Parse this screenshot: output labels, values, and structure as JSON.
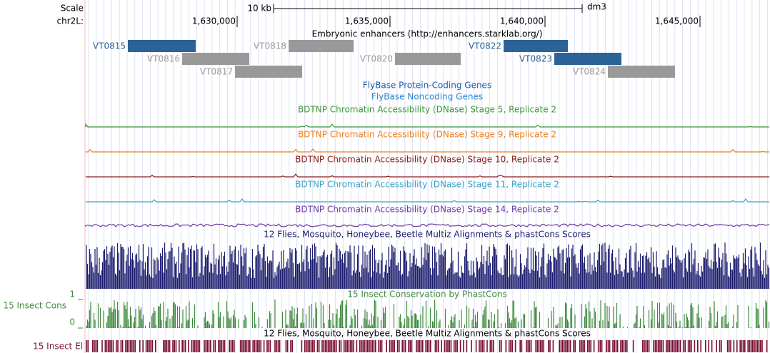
{
  "ruler": {
    "scale_label": "Scale",
    "chrom_label": "chr2L:",
    "bar_label": "10 kb",
    "assembly": "dm3",
    "positions": [
      "1,630,000",
      "1,635,000",
      "1,640,000",
      "1,645,000"
    ]
  },
  "enhancers": {
    "title": "Embryonic enhancers (http://enhancers.starklab.org/)",
    "features": [
      {
        "label": "VT0815",
        "color": "#2b6297"
      },
      {
        "label": "VT0816",
        "color": "#999999"
      },
      {
        "label": "VT0817",
        "color": "#999999"
      },
      {
        "label": "VT0818",
        "color": "#999999"
      },
      {
        "label": "VT0820",
        "color": "#999999"
      },
      {
        "label": "VT0822",
        "color": "#2b6297"
      },
      {
        "label": "VT0823",
        "color": "#2b6297"
      },
      {
        "label": "VT0824",
        "color": "#999999"
      }
    ]
  },
  "gene_tracks": [
    {
      "title": "FlyBase Protein-Coding Genes",
      "color": "#1a5aa8"
    },
    {
      "title": "FlyBase Noncoding Genes",
      "color": "#2b84d4"
    }
  ],
  "dnase_tracks": [
    {
      "title": "BDTNP Chromatin Accessibility (DNase) Stage 5, Replicate 2",
      "color": "#3a9a3a"
    },
    {
      "title": "BDTNP Chromatin Accessibility (DNase) Stage 9, Replicate 2",
      "color": "#e8801f"
    },
    {
      "title": "BDTNP Chromatin Accessibility (DNase) Stage 10, Replicate 2",
      "color": "#8b1a1a"
    },
    {
      "title": "BDTNP Chromatin Accessibility (DNase) Stage 11, Replicate 2",
      "color": "#3aa0c8"
    },
    {
      "title": "BDTNP Chromatin Accessibility (DNase) Stage 14, Replicate 2",
      "color": "#6b3aa3"
    }
  ],
  "multiz": {
    "title": "12 Flies, Mosquito, Honeybee, Beetle Multiz Alignments & phastCons Scores",
    "color": "#1b1b6e"
  },
  "phastcons": {
    "title": "15 Insect Conservation by PhastCons",
    "side_label": "15 Insect Cons",
    "max_label": "1",
    "min_label": "0",
    "color": "#3f8a3f"
  },
  "elements": {
    "title": "12 Flies, Mosquito, Honeybee, Beetle Multiz Alignments & phastCons Scores",
    "side_label": "15 Insect El",
    "color": "#7a1030"
  }
}
